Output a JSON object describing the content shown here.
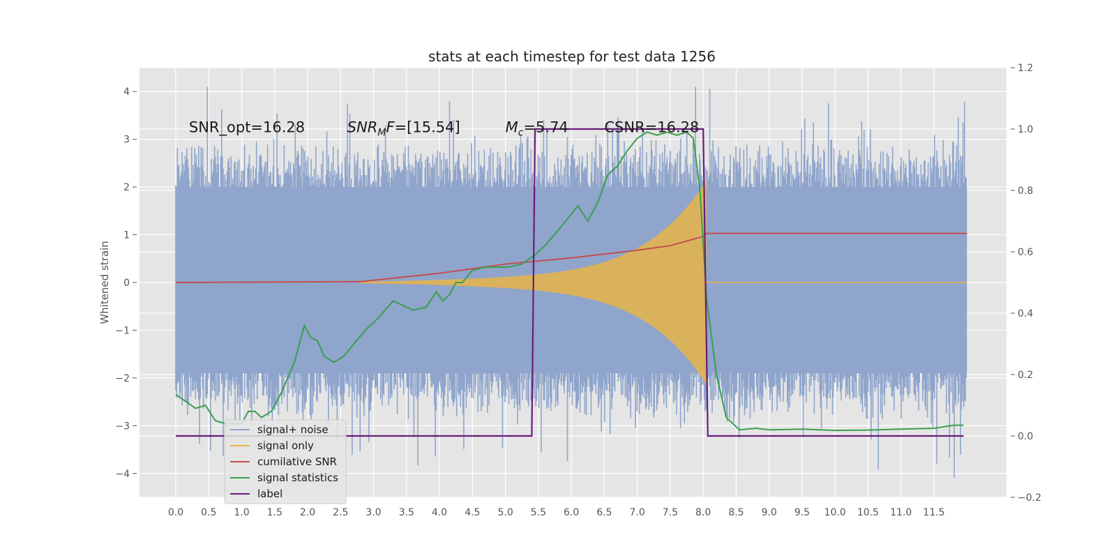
{
  "chart_data": {
    "type": "line",
    "title": "stats at each timestep for test data 1256",
    "ylabel": "Whitened strain",
    "y2label": "",
    "xlim": [
      -0.55,
      12.6
    ],
    "ylim": [
      -4.5,
      4.5
    ],
    "y2lim": [
      -0.2,
      1.2
    ],
    "x_ticks": [
      "0.0",
      "0.5",
      "1.0",
      "1.5",
      "2.0",
      "2.5",
      "3.0",
      "3.5",
      "4.0",
      "4.5",
      "5.0",
      "5.5",
      "6.0",
      "6.5",
      "7.0",
      "7.5",
      "8.0",
      "8.5",
      "9.0",
      "9.5",
      "10.0",
      "10.5",
      "11.0",
      "11.5"
    ],
    "y_ticks": [
      "−4",
      "−3",
      "−2",
      "−1",
      "0",
      "1",
      "2",
      "3",
      "4"
    ],
    "y2_ticks": [
      "−0.2",
      "0.0",
      "0.2",
      "0.4",
      "0.6",
      "0.8",
      "1.0",
      "1.2"
    ],
    "grid": true,
    "legend_position": "lower-left",
    "annotations": [
      {
        "text": "SNR_opt=16.28",
        "x": 0.2,
        "y": 3.25
      },
      {
        "text": "SNR_MF=[15.54]",
        "x": 2.6,
        "y": 3.25
      },
      {
        "text": "M_c=5.74",
        "x": 5.0,
        "y": 3.25
      },
      {
        "text": "CSNR=16.28",
        "x": 6.5,
        "y": 3.25
      }
    ],
    "series": [
      {
        "name": "signal+ noise",
        "color": "#8fa5cc",
        "axis": "left",
        "style": "dense-noise",
        "x_range": [
          0,
          12.0
        ],
        "envelope_low": -2.2,
        "envelope_high": 2.3
      },
      {
        "name": "signal only",
        "color": "#e8b446",
        "axis": "left",
        "style": "chirp",
        "x_range": [
          2.8,
          8.05
        ],
        "amplitude_end": 1.8
      },
      {
        "name": "cumilative SNR",
        "color": "#c44e52",
        "axis": "right",
        "x": [
          0.0,
          2.8,
          4.0,
          5.0,
          6.0,
          7.0,
          7.5,
          8.0,
          8.05,
          12.0
        ],
        "values": [
          0.5,
          0.503,
          0.53,
          0.56,
          0.58,
          0.605,
          0.62,
          0.65,
          0.66,
          0.66
        ]
      },
      {
        "name": "signal statistics",
        "color": "#3a9e4f",
        "axis": "right",
        "x": [
          0.0,
          0.2,
          0.3,
          0.45,
          0.6,
          0.75,
          1.0,
          1.1,
          1.2,
          1.3,
          1.45,
          1.6,
          1.8,
          1.95,
          2.05,
          2.15,
          2.25,
          2.4,
          2.55,
          2.7,
          2.9,
          3.05,
          3.3,
          3.5,
          3.6,
          3.8,
          3.95,
          4.05,
          4.15,
          4.25,
          4.35,
          4.5,
          4.7,
          4.9,
          5.05,
          5.25,
          5.45,
          5.6,
          5.8,
          5.95,
          6.1,
          6.25,
          6.4,
          6.55,
          6.7,
          6.85,
          7.0,
          7.15,
          7.3,
          7.45,
          7.6,
          7.75,
          7.85,
          7.95,
          8.05,
          8.2,
          8.35,
          8.55,
          8.8,
          9.0,
          9.5,
          10.0,
          10.5,
          11.0,
          11.5,
          11.8,
          11.95
        ],
        "values": [
          0.135,
          0.105,
          0.09,
          0.1,
          0.05,
          0.04,
          0.04,
          0.08,
          0.08,
          0.06,
          0.08,
          0.14,
          0.24,
          0.36,
          0.32,
          0.31,
          0.26,
          0.24,
          0.26,
          0.3,
          0.35,
          0.38,
          0.44,
          0.42,
          0.41,
          0.42,
          0.47,
          0.44,
          0.46,
          0.5,
          0.5,
          0.54,
          0.55,
          0.55,
          0.55,
          0.56,
          0.59,
          0.62,
          0.67,
          0.71,
          0.75,
          0.7,
          0.76,
          0.85,
          0.88,
          0.93,
          0.97,
          0.99,
          0.98,
          0.99,
          0.98,
          0.99,
          0.97,
          0.8,
          0.45,
          0.2,
          0.06,
          0.02,
          0.025,
          0.02,
          0.022,
          0.018,
          0.019,
          0.022,
          0.025,
          0.035,
          0.035
        ]
      },
      {
        "name": "label",
        "color": "#6a1b7a",
        "axis": "right",
        "x": [
          0.0,
          5.4,
          5.45,
          8.0,
          8.07,
          11.95
        ],
        "values": [
          0,
          0,
          1,
          1,
          0,
          0
        ]
      }
    ]
  }
}
